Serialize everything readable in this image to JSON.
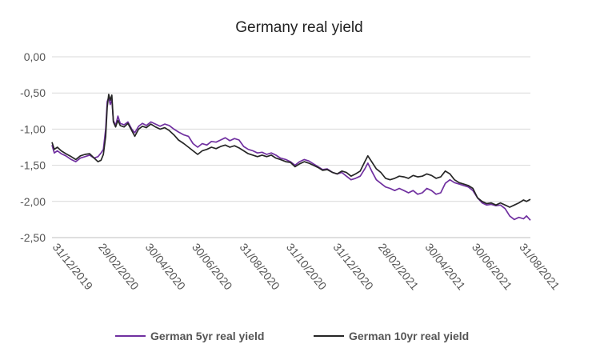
{
  "chart_data": {
    "type": "line",
    "title": "Germany real yield",
    "xlabel": "",
    "ylabel": "",
    "x_range": [
      "2019-12-31",
      "2021-09-15"
    ],
    "ylim": [
      -2.5,
      0
    ],
    "yticks": [
      "0,00",
      "-0,50",
      "-1,00",
      "-1,50",
      "-2,00",
      "-2,50"
    ],
    "xticks": [
      {
        "date": "2019-12-31",
        "label": "31/12/2019"
      },
      {
        "date": "2020-02-29",
        "label": "29/02/2020"
      },
      {
        "date": "2020-04-30",
        "label": "30/04/2020"
      },
      {
        "date": "2020-06-30",
        "label": "30/06/2020"
      },
      {
        "date": "2020-08-31",
        "label": "31/08/2020"
      },
      {
        "date": "2020-10-31",
        "label": "31/10/2020"
      },
      {
        "date": "2020-12-31",
        "label": "31/12/2020"
      },
      {
        "date": "2021-02-28",
        "label": "28/02/2021"
      },
      {
        "date": "2021-04-30",
        "label": "30/04/2021"
      },
      {
        "date": "2021-06-30",
        "label": "30/06/2021"
      },
      {
        "date": "2021-08-31",
        "label": "31/08/2021"
      }
    ],
    "grid": true,
    "legend_position": "bottom",
    "series": [
      {
        "name": "German 5yr real yield",
        "color": "#7030a0",
        "points": [
          [
            "2019-12-31",
            -1.22
          ],
          [
            "2020-01-03",
            -1.33
          ],
          [
            "2020-01-07",
            -1.3
          ],
          [
            "2020-01-12",
            -1.34
          ],
          [
            "2020-01-18",
            -1.37
          ],
          [
            "2020-01-25",
            -1.42
          ],
          [
            "2020-01-31",
            -1.45
          ],
          [
            "2020-02-06",
            -1.4
          ],
          [
            "2020-02-12",
            -1.38
          ],
          [
            "2020-02-18",
            -1.36
          ],
          [
            "2020-02-24",
            -1.4
          ],
          [
            "2020-02-29",
            -1.38
          ],
          [
            "2020-03-04",
            -1.33
          ],
          [
            "2020-03-07",
            -1.28
          ],
          [
            "2020-03-10",
            -1.0
          ],
          [
            "2020-03-12",
            -0.62
          ],
          [
            "2020-03-14",
            -0.56
          ],
          [
            "2020-03-16",
            -0.66
          ],
          [
            "2020-03-18",
            -0.59
          ],
          [
            "2020-03-20",
            -0.88
          ],
          [
            "2020-03-23",
            -0.95
          ],
          [
            "2020-03-26",
            -0.82
          ],
          [
            "2020-03-29",
            -0.92
          ],
          [
            "2020-04-03",
            -0.94
          ],
          [
            "2020-04-08",
            -0.9
          ],
          [
            "2020-04-13",
            -1.0
          ],
          [
            "2020-04-17",
            -1.05
          ],
          [
            "2020-04-22",
            -0.96
          ],
          [
            "2020-04-27",
            -0.92
          ],
          [
            "2020-05-02",
            -0.95
          ],
          [
            "2020-05-08",
            -0.9
          ],
          [
            "2020-05-14",
            -0.93
          ],
          [
            "2020-05-20",
            -0.96
          ],
          [
            "2020-05-26",
            -0.93
          ],
          [
            "2020-06-01",
            -0.95
          ],
          [
            "2020-06-07",
            -1.0
          ],
          [
            "2020-06-13",
            -1.04
          ],
          [
            "2020-06-20",
            -1.08
          ],
          [
            "2020-06-26",
            -1.1
          ],
          [
            "2020-07-02",
            -1.2
          ],
          [
            "2020-07-08",
            -1.25
          ],
          [
            "2020-07-14",
            -1.2
          ],
          [
            "2020-07-20",
            -1.22
          ],
          [
            "2020-07-26",
            -1.17
          ],
          [
            "2020-08-01",
            -1.18
          ],
          [
            "2020-08-07",
            -1.15
          ],
          [
            "2020-08-13",
            -1.12
          ],
          [
            "2020-08-19",
            -1.16
          ],
          [
            "2020-08-25",
            -1.13
          ],
          [
            "2020-08-31",
            -1.15
          ],
          [
            "2020-09-06",
            -1.24
          ],
          [
            "2020-09-12",
            -1.28
          ],
          [
            "2020-09-18",
            -1.3
          ],
          [
            "2020-09-24",
            -1.33
          ],
          [
            "2020-09-30",
            -1.32
          ],
          [
            "2020-10-06",
            -1.35
          ],
          [
            "2020-10-12",
            -1.33
          ],
          [
            "2020-10-18",
            -1.36
          ],
          [
            "2020-10-24",
            -1.4
          ],
          [
            "2020-10-31",
            -1.42
          ],
          [
            "2020-11-06",
            -1.45
          ],
          [
            "2020-11-12",
            -1.5
          ],
          [
            "2020-11-18",
            -1.45
          ],
          [
            "2020-11-24",
            -1.42
          ],
          [
            "2020-11-30",
            -1.44
          ],
          [
            "2020-12-06",
            -1.48
          ],
          [
            "2020-12-12",
            -1.52
          ],
          [
            "2020-12-18",
            -1.56
          ],
          [
            "2020-12-24",
            -1.55
          ],
          [
            "2020-12-31",
            -1.6
          ],
          [
            "2021-01-06",
            -1.62
          ],
          [
            "2021-01-12",
            -1.6
          ],
          [
            "2021-01-18",
            -1.65
          ],
          [
            "2021-01-24",
            -1.7
          ],
          [
            "2021-01-30",
            -1.68
          ],
          [
            "2021-02-05",
            -1.65
          ],
          [
            "2021-02-11",
            -1.55
          ],
          [
            "2021-02-15",
            -1.47
          ],
          [
            "2021-02-20",
            -1.58
          ],
          [
            "2021-02-26",
            -1.7
          ],
          [
            "2021-03-04",
            -1.75
          ],
          [
            "2021-03-10",
            -1.8
          ],
          [
            "2021-03-16",
            -1.82
          ],
          [
            "2021-03-22",
            -1.85
          ],
          [
            "2021-03-28",
            -1.82
          ],
          [
            "2021-04-03",
            -1.85
          ],
          [
            "2021-04-09",
            -1.88
          ],
          [
            "2021-04-15",
            -1.85
          ],
          [
            "2021-04-21",
            -1.9
          ],
          [
            "2021-04-27",
            -1.88
          ],
          [
            "2021-05-03",
            -1.82
          ],
          [
            "2021-05-09",
            -1.85
          ],
          [
            "2021-05-15",
            -1.9
          ],
          [
            "2021-05-21",
            -1.88
          ],
          [
            "2021-05-27",
            -1.75
          ],
          [
            "2021-06-02",
            -1.7
          ],
          [
            "2021-06-08",
            -1.74
          ],
          [
            "2021-06-14",
            -1.76
          ],
          [
            "2021-06-20",
            -1.78
          ],
          [
            "2021-06-26",
            -1.8
          ],
          [
            "2021-07-02",
            -1.85
          ],
          [
            "2021-07-08",
            -1.95
          ],
          [
            "2021-07-14",
            -2.02
          ],
          [
            "2021-07-20",
            -2.05
          ],
          [
            "2021-07-26",
            -2.04
          ],
          [
            "2021-08-01",
            -2.06
          ],
          [
            "2021-08-07",
            -2.05
          ],
          [
            "2021-08-13",
            -2.1
          ],
          [
            "2021-08-19",
            -2.2
          ],
          [
            "2021-08-25",
            -2.25
          ],
          [
            "2021-08-31",
            -2.22
          ],
          [
            "2021-09-06",
            -2.24
          ],
          [
            "2021-09-10",
            -2.2
          ],
          [
            "2021-09-15",
            -2.26
          ]
        ]
      },
      {
        "name": "German 10yr real yield",
        "color": "#262626",
        "points": [
          [
            "2019-12-31",
            -1.18
          ],
          [
            "2020-01-03",
            -1.28
          ],
          [
            "2020-01-07",
            -1.25
          ],
          [
            "2020-01-12",
            -1.3
          ],
          [
            "2020-01-18",
            -1.34
          ],
          [
            "2020-01-25",
            -1.38
          ],
          [
            "2020-01-31",
            -1.42
          ],
          [
            "2020-02-06",
            -1.37
          ],
          [
            "2020-02-12",
            -1.35
          ],
          [
            "2020-02-18",
            -1.34
          ],
          [
            "2020-02-24",
            -1.4
          ],
          [
            "2020-02-29",
            -1.45
          ],
          [
            "2020-03-04",
            -1.43
          ],
          [
            "2020-03-07",
            -1.35
          ],
          [
            "2020-03-10",
            -1.1
          ],
          [
            "2020-03-12",
            -0.7
          ],
          [
            "2020-03-14",
            -0.52
          ],
          [
            "2020-03-16",
            -0.6
          ],
          [
            "2020-03-18",
            -0.53
          ],
          [
            "2020-03-20",
            -0.9
          ],
          [
            "2020-03-23",
            -0.97
          ],
          [
            "2020-03-26",
            -0.88
          ],
          [
            "2020-03-29",
            -0.95
          ],
          [
            "2020-04-03",
            -0.97
          ],
          [
            "2020-04-08",
            -0.92
          ],
          [
            "2020-04-13",
            -1.02
          ],
          [
            "2020-04-17",
            -1.1
          ],
          [
            "2020-04-22",
            -1.0
          ],
          [
            "2020-04-27",
            -0.96
          ],
          [
            "2020-05-02",
            -0.98
          ],
          [
            "2020-05-08",
            -0.93
          ],
          [
            "2020-05-14",
            -0.97
          ],
          [
            "2020-05-20",
            -1.0
          ],
          [
            "2020-05-26",
            -0.98
          ],
          [
            "2020-06-01",
            -1.02
          ],
          [
            "2020-06-07",
            -1.08
          ],
          [
            "2020-06-13",
            -1.15
          ],
          [
            "2020-06-20",
            -1.2
          ],
          [
            "2020-06-26",
            -1.25
          ],
          [
            "2020-07-02",
            -1.3
          ],
          [
            "2020-07-08",
            -1.35
          ],
          [
            "2020-07-14",
            -1.3
          ],
          [
            "2020-07-20",
            -1.28
          ],
          [
            "2020-07-26",
            -1.25
          ],
          [
            "2020-08-01",
            -1.27
          ],
          [
            "2020-08-07",
            -1.24
          ],
          [
            "2020-08-13",
            -1.22
          ],
          [
            "2020-08-19",
            -1.25
          ],
          [
            "2020-08-25",
            -1.23
          ],
          [
            "2020-08-31",
            -1.26
          ],
          [
            "2020-09-06",
            -1.3
          ],
          [
            "2020-09-12",
            -1.34
          ],
          [
            "2020-09-18",
            -1.36
          ],
          [
            "2020-09-24",
            -1.38
          ],
          [
            "2020-09-30",
            -1.36
          ],
          [
            "2020-10-06",
            -1.38
          ],
          [
            "2020-10-12",
            -1.36
          ],
          [
            "2020-10-18",
            -1.4
          ],
          [
            "2020-10-24",
            -1.42
          ],
          [
            "2020-10-31",
            -1.45
          ],
          [
            "2020-11-06",
            -1.46
          ],
          [
            "2020-11-12",
            -1.52
          ],
          [
            "2020-11-18",
            -1.48
          ],
          [
            "2020-11-24",
            -1.45
          ],
          [
            "2020-11-30",
            -1.47
          ],
          [
            "2020-12-06",
            -1.5
          ],
          [
            "2020-12-12",
            -1.53
          ],
          [
            "2020-12-18",
            -1.57
          ],
          [
            "2020-12-24",
            -1.56
          ],
          [
            "2020-12-31",
            -1.6
          ],
          [
            "2021-01-06",
            -1.62
          ],
          [
            "2021-01-12",
            -1.58
          ],
          [
            "2021-01-18",
            -1.6
          ],
          [
            "2021-01-24",
            -1.65
          ],
          [
            "2021-01-30",
            -1.62
          ],
          [
            "2021-02-05",
            -1.58
          ],
          [
            "2021-02-11",
            -1.45
          ],
          [
            "2021-02-15",
            -1.37
          ],
          [
            "2021-02-20",
            -1.45
          ],
          [
            "2021-02-26",
            -1.55
          ],
          [
            "2021-03-04",
            -1.6
          ],
          [
            "2021-03-10",
            -1.68
          ],
          [
            "2021-03-16",
            -1.7
          ],
          [
            "2021-03-22",
            -1.68
          ],
          [
            "2021-03-28",
            -1.65
          ],
          [
            "2021-04-03",
            -1.66
          ],
          [
            "2021-04-09",
            -1.68
          ],
          [
            "2021-04-15",
            -1.64
          ],
          [
            "2021-04-21",
            -1.66
          ],
          [
            "2021-04-27",
            -1.65
          ],
          [
            "2021-05-03",
            -1.62
          ],
          [
            "2021-05-09",
            -1.64
          ],
          [
            "2021-05-15",
            -1.68
          ],
          [
            "2021-05-21",
            -1.66
          ],
          [
            "2021-05-27",
            -1.58
          ],
          [
            "2021-06-02",
            -1.62
          ],
          [
            "2021-06-08",
            -1.7
          ],
          [
            "2021-06-14",
            -1.74
          ],
          [
            "2021-06-20",
            -1.76
          ],
          [
            "2021-06-26",
            -1.78
          ],
          [
            "2021-07-02",
            -1.82
          ],
          [
            "2021-07-08",
            -1.95
          ],
          [
            "2021-07-14",
            -2.0
          ],
          [
            "2021-07-20",
            -2.03
          ],
          [
            "2021-07-26",
            -2.02
          ],
          [
            "2021-08-01",
            -2.05
          ],
          [
            "2021-08-07",
            -2.02
          ],
          [
            "2021-08-13",
            -2.05
          ],
          [
            "2021-08-19",
            -2.08
          ],
          [
            "2021-08-25",
            -2.05
          ],
          [
            "2021-08-31",
            -2.02
          ],
          [
            "2021-09-06",
            -1.98
          ],
          [
            "2021-09-10",
            -2.0
          ],
          [
            "2021-09-15",
            -1.97
          ]
        ]
      }
    ]
  }
}
